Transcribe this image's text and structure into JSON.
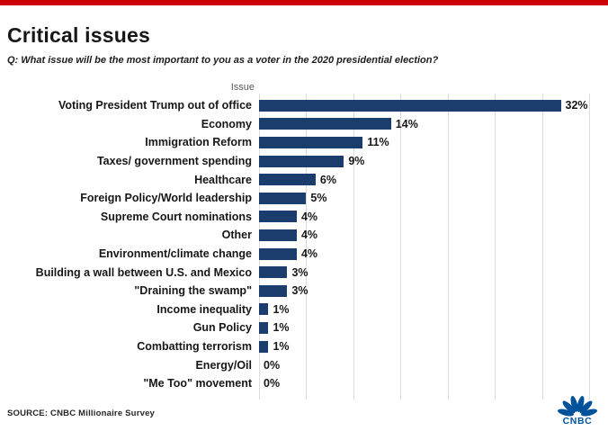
{
  "colors": {
    "accent": "#cc0000",
    "bar": "#1b3d6d",
    "logo": "#00539b"
  },
  "header": {
    "title": "Critical issues",
    "subtitle": "Q: What issue will be the most important to you as a voter in the 2020 presidential election?"
  },
  "chart_data": {
    "type": "bar",
    "orientation": "horizontal",
    "column_header": "Issue",
    "categories": [
      "Voting President Trump out of office",
      "Economy",
      "Immigration Reform",
      "Taxes/ government spending",
      "Healthcare",
      "Foreign Policy/World leadership",
      "Supreme Court nominations",
      "Other",
      "Environment/climate change",
      "Building a wall between U.S. and Mexico",
      "\"Draining the swamp\"",
      "Income inequality",
      "Gun Policy",
      "Combatting terrorism",
      "Energy/Oil",
      "\"Me Too\" movement"
    ],
    "values": [
      32,
      14,
      11,
      9,
      6,
      5,
      4,
      4,
      4,
      3,
      3,
      1,
      1,
      1,
      0,
      0
    ],
    "value_labels": [
      "32%",
      "14%",
      "11%",
      "9%",
      "6%",
      "5%",
      "4%",
      "4%",
      "4%",
      "3%",
      "3%",
      "1%",
      "1%",
      "1%",
      "0%",
      "0%"
    ],
    "xlim": [
      0,
      35
    ],
    "grid_ticks": [
      0,
      5,
      10,
      15,
      20,
      25,
      30,
      35
    ],
    "grid": "vertical-lines-only",
    "legend": "none"
  },
  "footer": {
    "source": "SOURCE: CNBC Millionaire Survey",
    "logo_text": "CNBC",
    "logo_icon": "cnbc-peacock-icon"
  }
}
